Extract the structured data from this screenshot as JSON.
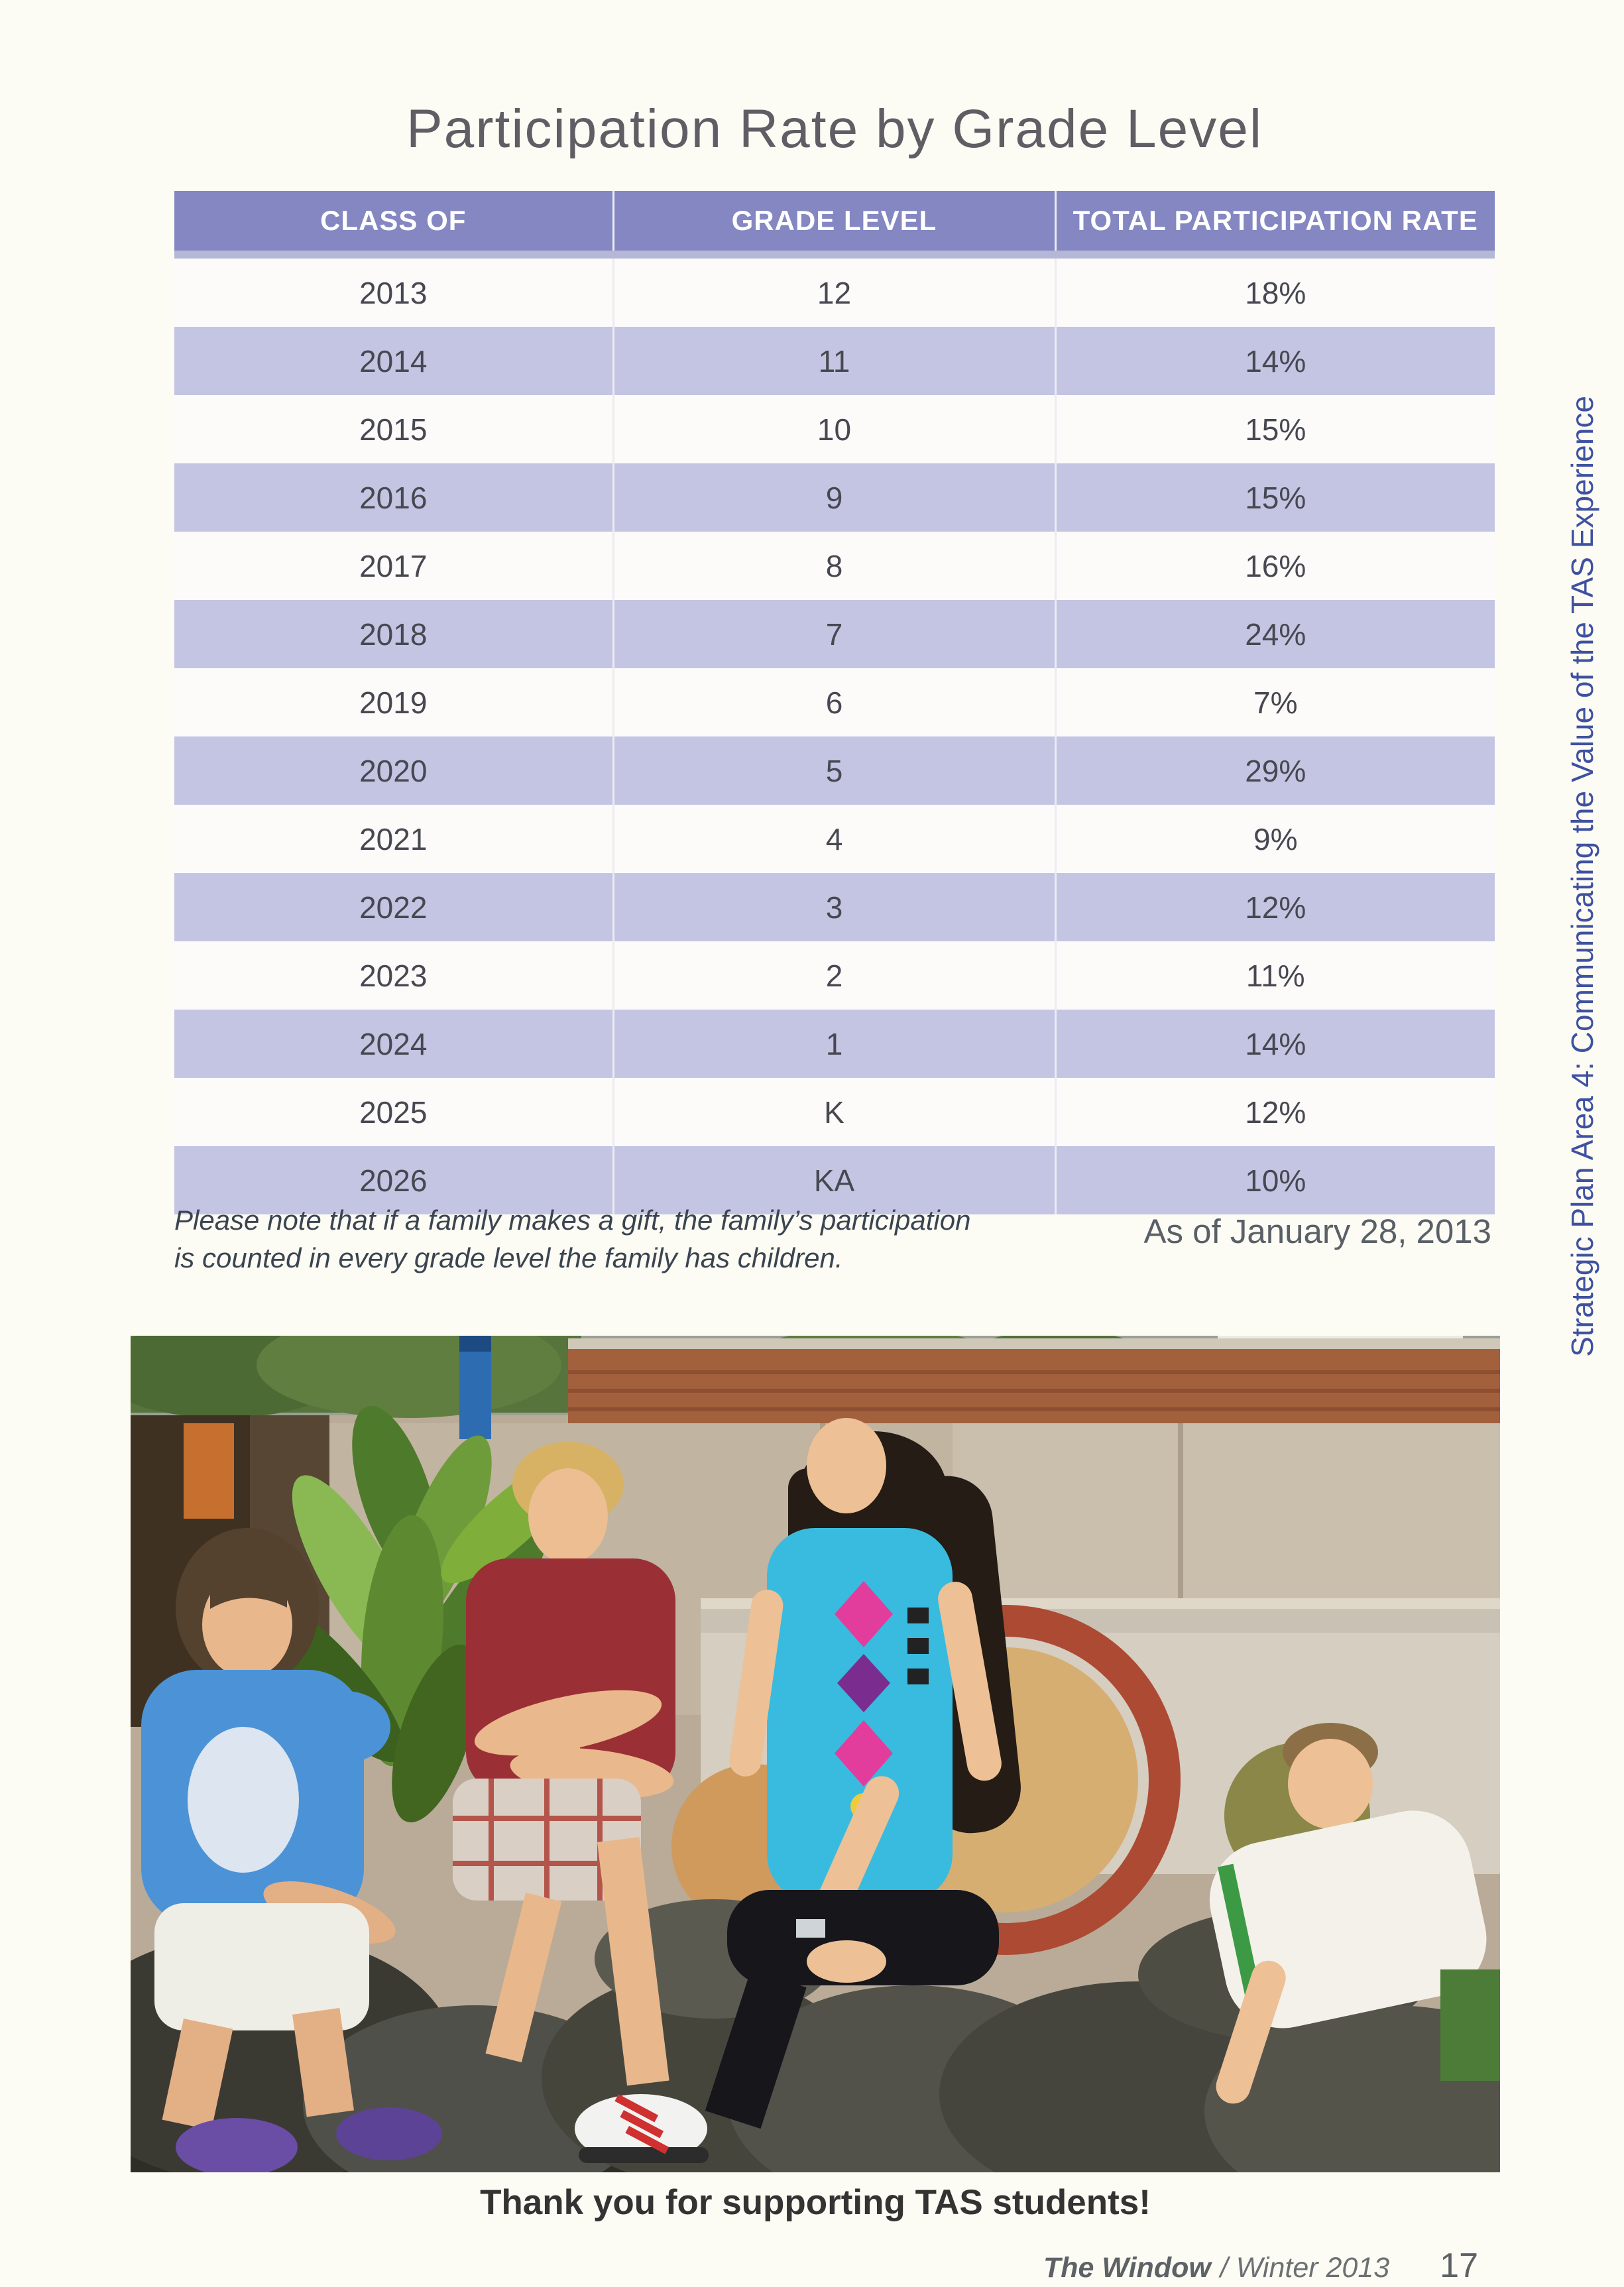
{
  "page": {
    "title": "Participation Rate by Grade Level",
    "sidebar_text": "Strategic Plan Area 4: Communicating the Value of the TAS Experience",
    "note": {
      "line1": "Please note that if a family makes a gift, the family’s participation",
      "line2": "is counted in every grade level the family has children."
    },
    "as_of": "As of January 28, 2013",
    "photo_caption": "Thank you for supporting TAS students!",
    "footer": {
      "magazine": "The Window",
      "issue": "/ Winter 2013",
      "page_number": "17"
    }
  },
  "table": {
    "headers": [
      "CLASS OF",
      "GRADE LEVEL",
      "TOTAL PARTICIPATION RATE"
    ],
    "rows": [
      [
        "2013",
        "12",
        "18%"
      ],
      [
        "2014",
        "11",
        "14%"
      ],
      [
        "2015",
        "10",
        "15%"
      ],
      [
        "2016",
        "9",
        "15%"
      ],
      [
        "2017",
        "8",
        "16%"
      ],
      [
        "2018",
        "7",
        "24%"
      ],
      [
        "2019",
        "6",
        "7%"
      ],
      [
        "2020",
        "5",
        "29%"
      ],
      [
        "2021",
        "4",
        "9%"
      ],
      [
        "2022",
        "3",
        "12%"
      ],
      [
        "2023",
        "2",
        "11%"
      ],
      [
        "2024",
        "1",
        "14%"
      ],
      [
        "2025",
        "K",
        "12%"
      ],
      [
        "2026",
        "KA",
        "10%"
      ]
    ]
  },
  "colors": {
    "page_bg": "#fdfcf4",
    "header_bg": "#8487c1",
    "row_bg": "#fcfbfa",
    "row_alt_bg": "#c4c5e3",
    "sidebar_text": "#3e51a1"
  }
}
